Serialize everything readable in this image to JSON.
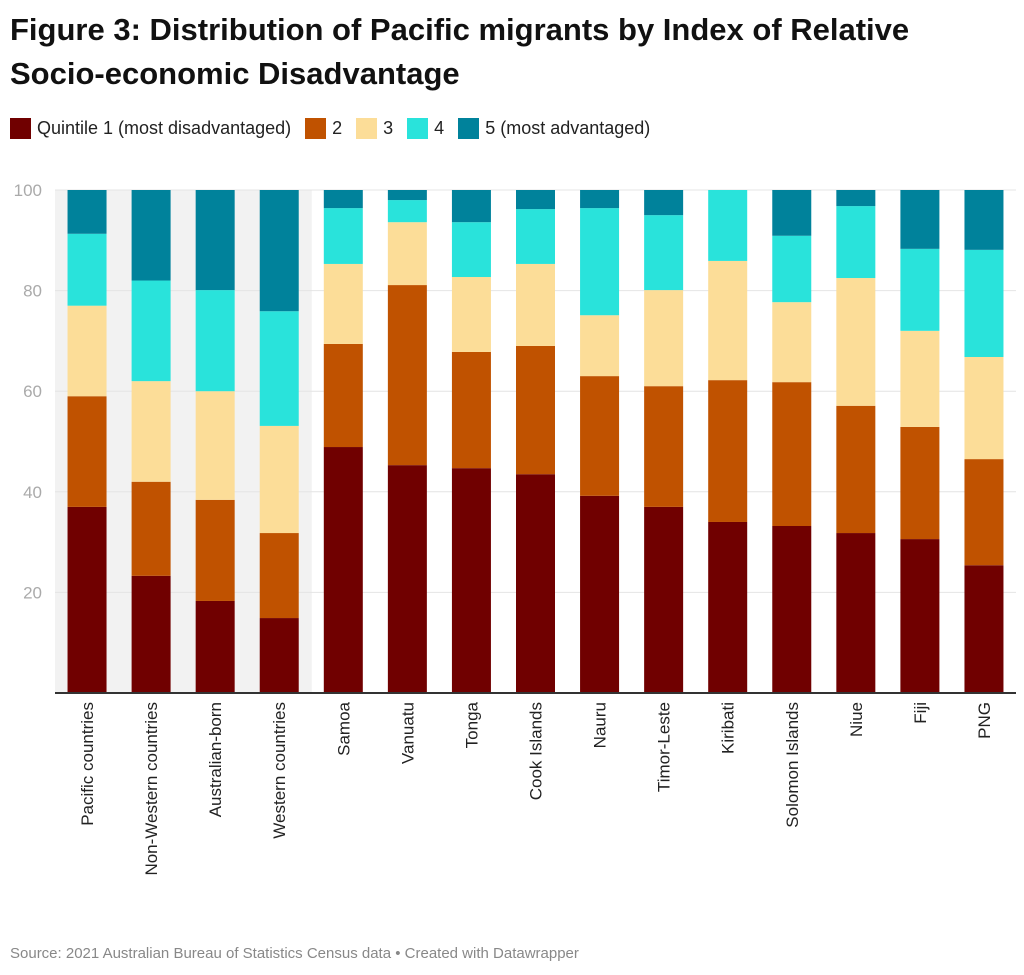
{
  "chart_data": {
    "type": "bar",
    "stacked": true,
    "title": "Figure 3: Distribution of Pacific migrants by Index of Relative Socio-economic Disadvantage",
    "ylim": [
      0,
      100
    ],
    "yticks": [
      20,
      40,
      60,
      80,
      100
    ],
    "grid": true,
    "legend_position": "top",
    "highlighted_categories": [
      "Pacific countries",
      "Non-Western countries",
      "Australian-born",
      "Western countries"
    ],
    "categories": [
      "Pacific countries",
      "Non-Western countries",
      "Australian-born",
      "Western countries",
      "Samoa",
      "Vanuatu",
      "Tonga",
      "Cook Islands",
      "Nauru",
      "Timor-Leste",
      "Kiribati",
      "Solomon Islands",
      "Niue",
      "Fiji",
      "PNG"
    ],
    "series": [
      {
        "name": "Quintile 1 (most disadvantaged)",
        "color": "#700000",
        "values": [
          37.0,
          23.3,
          18.3,
          14.9,
          48.9,
          45.3,
          44.7,
          43.5,
          39.2,
          37.0,
          34.0,
          33.2,
          31.8,
          30.6,
          25.4
        ]
      },
      {
        "name": "2",
        "color": "#c05200",
        "values": [
          22.0,
          18.7,
          20.1,
          16.9,
          20.5,
          35.8,
          23.1,
          25.5,
          23.8,
          24.0,
          28.2,
          28.6,
          25.3,
          22.3,
          21.1
        ]
      },
      {
        "name": "3",
        "color": "#fcdd98",
        "values": [
          18.0,
          20.0,
          21.6,
          21.3,
          15.9,
          12.5,
          14.9,
          16.3,
          12.1,
          19.1,
          23.7,
          15.9,
          25.4,
          19.1,
          20.3
        ]
      },
      {
        "name": "4",
        "color": "#29e3db",
        "values": [
          14.3,
          20.0,
          20.1,
          22.8,
          11.1,
          4.4,
          10.9,
          10.9,
          21.3,
          14.9,
          14.1,
          13.2,
          14.3,
          16.3,
          21.3
        ]
      },
      {
        "name": "5 (most advantaged)",
        "color": "#00829b",
        "values": [
          8.7,
          18.0,
          19.9,
          24.1,
          3.6,
          2.0,
          6.4,
          3.8,
          3.6,
          5.0,
          0,
          9.1,
          3.2,
          11.7,
          11.9
        ]
      }
    ]
  },
  "source": "Source: 2021 Australian Bureau of Statistics Census data • Created with Datawrapper"
}
